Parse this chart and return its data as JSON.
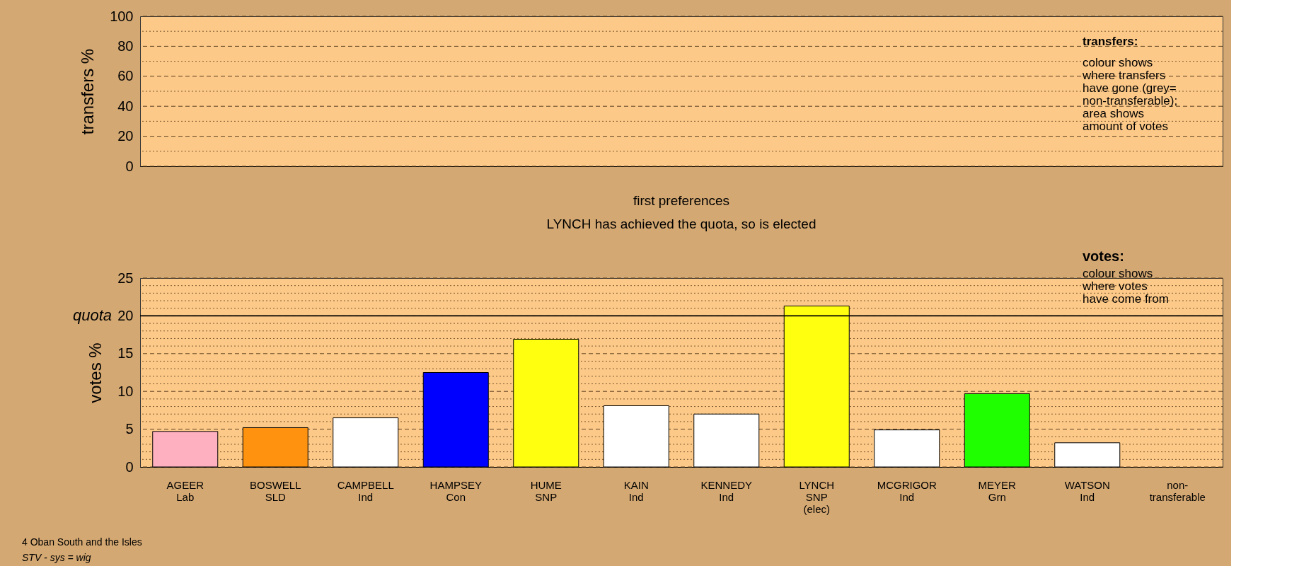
{
  "chart_data": [
    {
      "type": "bar",
      "ylabel": "transfers %",
      "categories": [
        null,
        null,
        null,
        null,
        null,
        null,
        null,
        null,
        null,
        null,
        null,
        null
      ],
      "values": [
        null,
        null,
        null,
        null,
        null,
        null,
        null,
        null,
        null,
        null,
        null,
        null
      ],
      "ylim": [
        0,
        100
      ],
      "yticks": [
        0,
        {
          "value": 10,
          "label": null
        },
        20,
        {
          "value": 30,
          "label": null
        },
        40,
        {
          "value": 50,
          "label": null
        },
        60,
        {
          "value": 70,
          "label": null
        },
        80,
        {
          "value": 90,
          "label": null
        },
        100
      ],
      "grid": true,
      "tick_labels": "y",
      "annotations": [
        "transfers:",
        "colour shows\nwhere transfers\nhave gone (grey=\nnon-transferable);\n\narea shows\namount of votes"
      ]
    },
    {
      "type": "bar",
      "title": "first preferences",
      "subtitle": "LYNCH has achieved the quota, so is elected",
      "ylabel": "votes %",
      "categories": [
        "AGEER\nLab",
        "BOSWELL\nSLD",
        "CAMPBELL\nInd",
        "HAMPSEY\nCon",
        "HUME\nSNP",
        "KAIN\nInd",
        "KENNEDY\nInd",
        "LYNCH\nSNP\n(elec)",
        "MCGRIGOR\nInd",
        "MEYER\nGrn",
        "WATSON\nInd",
        "non-\ntransferable"
      ],
      "values": [
        4.7,
        5.2,
        6.5,
        12.5,
        16.9,
        8.1,
        7.0,
        21.3,
        4.9,
        9.7,
        3.2,
        null
      ],
      "colors": [
        "#ffb0c0",
        "#ff9310",
        "#ffffff",
        "#0000ff",
        "#ffff10",
        "#ffffff",
        "#ffffff",
        "#ffff10",
        "#ffffff",
        "#20ff00",
        "#ffffff",
        null
      ],
      "ylim": [
        0,
        25
      ],
      "yticks": [
        0,
        {
          "value": 1,
          "label": null
        },
        {
          "value": 2,
          "label": null
        },
        {
          "value": 3,
          "label": null
        },
        {
          "value": 4,
          "label": null
        },
        5,
        {
          "value": 6,
          "label": null
        },
        {
          "value": 7,
          "label": null
        },
        {
          "value": 8,
          "label": null
        },
        {
          "value": 9,
          "label": null
        },
        10,
        {
          "value": 11,
          "label": null
        },
        {
          "value": 12,
          "label": null
        },
        {
          "value": 13,
          "label": null
        },
        {
          "value": 14,
          "label": null
        },
        15,
        {
          "value": 16,
          "label": null
        },
        {
          "value": 17,
          "label": null
        },
        {
          "value": 18,
          "label": null
        },
        {
          "value": 19,
          "label": null
        },
        20,
        {
          "value": 21,
          "label": null
        },
        {
          "value": 22,
          "label": null
        },
        {
          "value": 23,
          "label": null
        },
        {
          "value": 24,
          "label": null
        },
        25
      ],
      "grid": true,
      "ref_lines": [
        {
          "axis": "y",
          "value": 20,
          "label": "quota",
          "color": "#000000",
          "line_style": "solid"
        }
      ],
      "annotations": [
        "votes:",
        "colour shows\nwhere votes\nhave come from",
        "4 Oban South and the Isles",
        "STV - sys = wig"
      ]
    }
  ]
}
